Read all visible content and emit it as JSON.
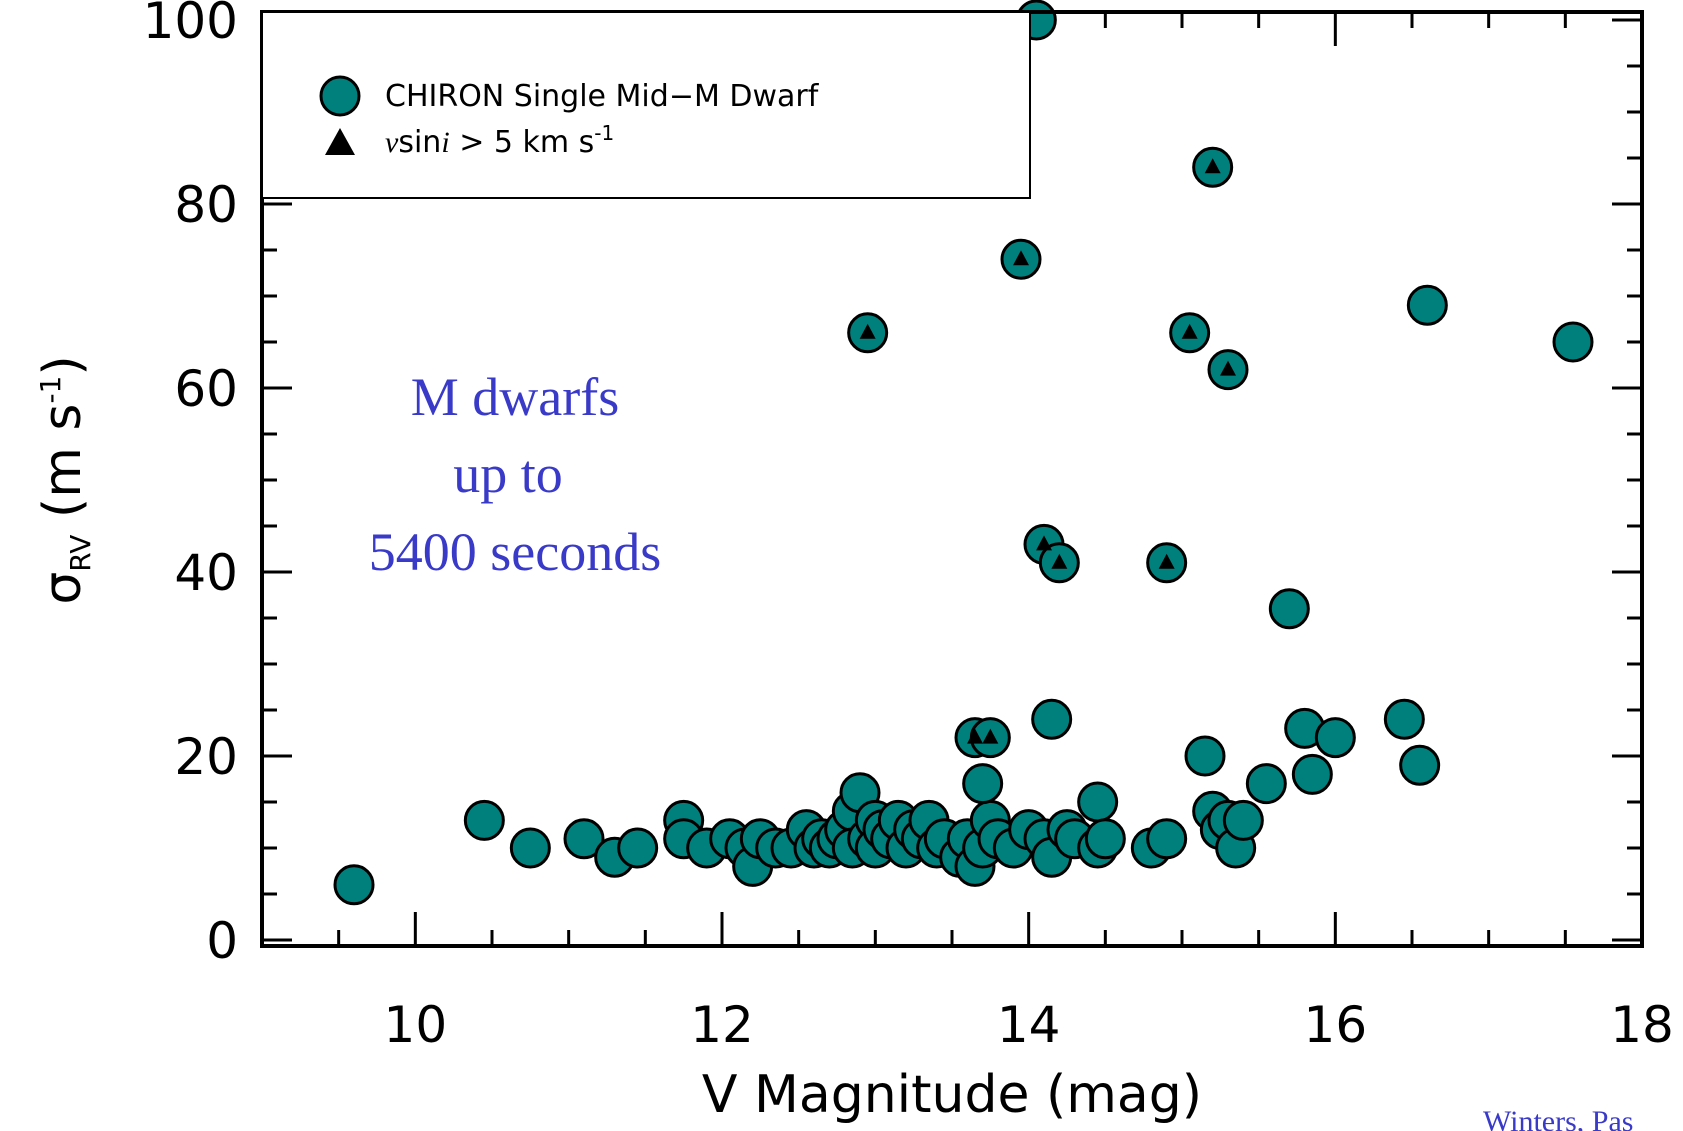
{
  "chart_data": {
    "type": "scatter",
    "xlabel": "V Magnitude (mag)",
    "ylabel_main": "σ",
    "ylabel_sub": "RV",
    "ylabel_unit": "(m s",
    "ylabel_sup": "-1",
    "ylabel_close": ")",
    "xlim": [
      9,
      18
    ],
    "ylim": [
      0,
      100
    ],
    "x_ticks": [
      10,
      12,
      14,
      16,
      18
    ],
    "y_ticks": [
      0,
      20,
      40,
      60,
      80,
      100
    ],
    "x_tick_labels": [
      "10",
      "12",
      "14",
      "16",
      "18"
    ],
    "y_tick_labels": [
      "0",
      "20",
      "40",
      "60",
      "80",
      "100"
    ],
    "colors": {
      "marker": "#00807c",
      "annotation": "#3a3ac8"
    },
    "legend": {
      "placement": "top-left",
      "entries": [
        {
          "label": "CHIRON Single Mid−M Dwarf",
          "marker": "circle"
        },
        {
          "label_italic": "v",
          "label_mid": "sin",
          "label_italic2": "i",
          "label_rest": " > 5 km s",
          "label_sup": "-1",
          "marker": "triangle"
        }
      ]
    },
    "annotation": [
      "M dwarfs",
      "up to",
      "5400 seconds"
    ],
    "credit": "Winters, Pas",
    "series": [
      {
        "marker": "circle",
        "points": [
          [
            9.6,
            6
          ],
          [
            10.45,
            13
          ],
          [
            10.75,
            10
          ],
          [
            11.1,
            11
          ],
          [
            11.3,
            9
          ],
          [
            11.45,
            10
          ],
          [
            11.75,
            13
          ],
          [
            11.75,
            11
          ],
          [
            11.9,
            10
          ],
          [
            12.05,
            11
          ],
          [
            12.15,
            10
          ],
          [
            12.2,
            8
          ],
          [
            12.25,
            11
          ],
          [
            12.35,
            10
          ],
          [
            12.45,
            10
          ],
          [
            12.55,
            12
          ],
          [
            12.6,
            10
          ],
          [
            12.65,
            11
          ],
          [
            12.7,
            10
          ],
          [
            12.75,
            11
          ],
          [
            12.8,
            12
          ],
          [
            12.85,
            14
          ],
          [
            12.85,
            10
          ],
          [
            12.9,
            16
          ],
          [
            12.95,
            11
          ],
          [
            13.0,
            13
          ],
          [
            13.0,
            10
          ],
          [
            13.05,
            12
          ],
          [
            13.1,
            11
          ],
          [
            13.15,
            13
          ],
          [
            13.2,
            10
          ],
          [
            13.25,
            12
          ],
          [
            13.3,
            11
          ],
          [
            13.35,
            13
          ],
          [
            13.4,
            10
          ],
          [
            13.45,
            11
          ],
          [
            13.55,
            9
          ],
          [
            13.6,
            11
          ],
          [
            13.65,
            8
          ],
          [
            13.7,
            10
          ],
          [
            13.75,
            13
          ],
          [
            13.8,
            11
          ],
          [
            13.9,
            10
          ],
          [
            14.0,
            12
          ],
          [
            14.1,
            11
          ],
          [
            14.15,
            9
          ],
          [
            14.25,
            12
          ],
          [
            14.3,
            11
          ],
          [
            14.45,
            15
          ],
          [
            14.45,
            10
          ],
          [
            14.5,
            11
          ],
          [
            14.8,
            10
          ],
          [
            14.9,
            11
          ],
          [
            15.15,
            20
          ],
          [
            15.2,
            14
          ],
          [
            15.25,
            12
          ],
          [
            15.3,
            13
          ],
          [
            15.35,
            10
          ],
          [
            15.4,
            13
          ],
          [
            15.55,
            17
          ],
          [
            15.7,
            36
          ],
          [
            15.8,
            23
          ],
          [
            15.85,
            18
          ],
          [
            16.0,
            22
          ],
          [
            16.45,
            24
          ],
          [
            16.55,
            19
          ],
          [
            16.6,
            69
          ],
          [
            17.55,
            65
          ],
          [
            13.7,
            17
          ],
          [
            14.15,
            24
          ],
          [
            14.05,
            100
          ]
        ]
      },
      {
        "marker": "circle-with-triangle",
        "points": [
          [
            12.95,
            66
          ],
          [
            13.95,
            74
          ],
          [
            14.1,
            43
          ],
          [
            14.2,
            41
          ],
          [
            13.65,
            22
          ],
          [
            13.75,
            22
          ],
          [
            14.9,
            41
          ],
          [
            15.05,
            66
          ],
          [
            15.2,
            84
          ],
          [
            15.3,
            62
          ]
        ]
      }
    ]
  }
}
